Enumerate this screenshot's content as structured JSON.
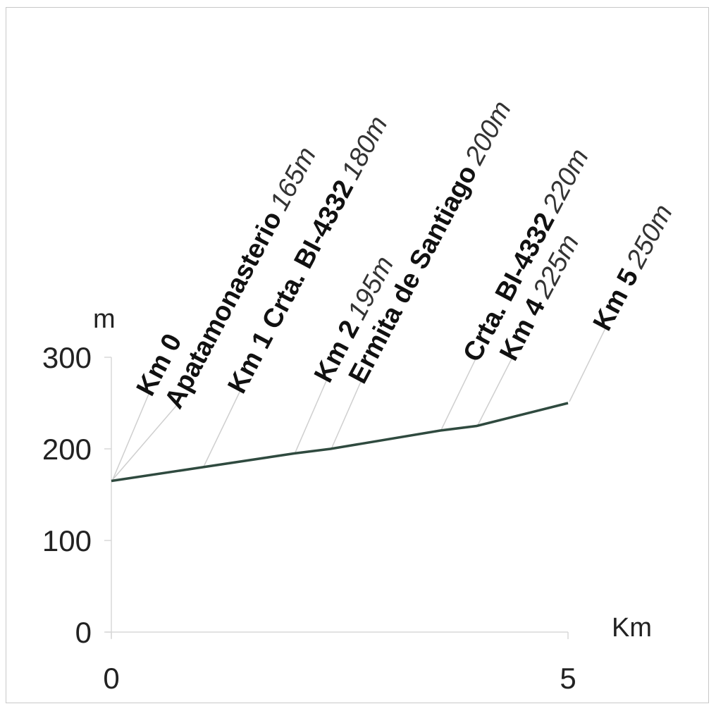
{
  "chart_data": {
    "type": "line",
    "title": "",
    "xlabel": "Km",
    "ylabel": "m",
    "xlim": [
      0,
      5
    ],
    "ylim": [
      0,
      300
    ],
    "x_ticks": [
      0,
      5
    ],
    "y_ticks": [
      0,
      100,
      200,
      300
    ],
    "grid": false,
    "series": [
      {
        "x": [
          0,
          1,
          2,
          2.4,
          3.6,
          4,
          5
        ],
        "values": [
          165,
          180,
          195,
          200,
          220,
          225,
          250
        ]
      }
    ],
    "annotations": [
      {
        "x": 0,
        "y": 165,
        "name": "Km 0",
        "elev": ""
      },
      {
        "x": 0,
        "y": 165,
        "name": "Apatamonasterio",
        "elev": "165m"
      },
      {
        "x": 1,
        "y": 180,
        "name": "Km 1 Crta. BI-4332",
        "elev": "180m"
      },
      {
        "x": 2,
        "y": 195,
        "name": "Km 2",
        "elev": "195m"
      },
      {
        "x": 2.4,
        "y": 200,
        "name": "Ermita de Santiago",
        "elev": "200m"
      },
      {
        "x": 3.6,
        "y": 220,
        "name": "Crta. BI-4332",
        "elev": "220m"
      },
      {
        "x": 4,
        "y": 225,
        "name": "Km 4",
        "elev": "225m"
      },
      {
        "x": 5,
        "y": 250,
        "name": "Km 5",
        "elev": "250m"
      }
    ],
    "colors": {
      "line": "#2f4a3f"
    }
  }
}
